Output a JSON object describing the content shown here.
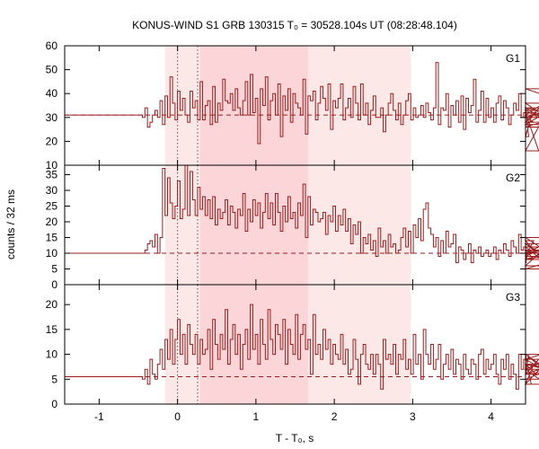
{
  "chart_data": {
    "type": "line",
    "title": "KONUS-WIND S1 GRB 130315 T₀ = 30528.104s UT (08:28:48.104)",
    "xlabel": "T - T₀, s",
    "ylabel": "counts / 32 ms",
    "xlim": [
      -1.44,
      4.44
    ],
    "xticks": [
      -1,
      0,
      1,
      2,
      3,
      4
    ],
    "bin_width": 0.032,
    "shaded_intervals": [
      {
        "range": [
          -0.16,
          2.976
        ],
        "color": "#fde8e8"
      },
      {
        "range": [
          0.288,
          1.664
        ],
        "color": "#fbd5d8"
      }
    ],
    "vertical_markers": [
      0,
      0.256
    ],
    "trace_color": "#9b1c1c",
    "panels": [
      {
        "name": "G1",
        "ylim": [
          10,
          60
        ],
        "yticks": [
          10,
          20,
          30,
          40,
          50,
          60
        ],
        "background_level": 31,
        "pre_burst_start": -0.448,
        "values": [
          30,
          34,
          26,
          28,
          31,
          33,
          30,
          37,
          27,
          39,
          30,
          47,
          36,
          29,
          41,
          33,
          38,
          31,
          28,
          41,
          34,
          37,
          29,
          45,
          29,
          35,
          37,
          27,
          43,
          28,
          36,
          33,
          46,
          37,
          36,
          40,
          33,
          42,
          34,
          31,
          37,
          45,
          31,
          48,
          32,
          38,
          19,
          42,
          35,
          47,
          29,
          37,
          40,
          31,
          44,
          22,
          39,
          33,
          42,
          28,
          40,
          36,
          34,
          31,
          46,
          23,
          39,
          37,
          41,
          29,
          36,
          43,
          38,
          33,
          44,
          25,
          37,
          34,
          38,
          44,
          29,
          34,
          38,
          30,
          43,
          36,
          29,
          44,
          31,
          36,
          27,
          33,
          39,
          30,
          30,
          34,
          24,
          31,
          36,
          40,
          33,
          29,
          36,
          27,
          31,
          37,
          40,
          29,
          34,
          30,
          31,
          35,
          30,
          36,
          32,
          29,
          34,
          53,
          27,
          34,
          33,
          40,
          26,
          35,
          31,
          37,
          28,
          39,
          25,
          38,
          32,
          35,
          46,
          28,
          33,
          41,
          28,
          38,
          30,
          34,
          28,
          36,
          39,
          29,
          37,
          34,
          27,
          31,
          36,
          33,
          40,
          30,
          32,
          34,
          22,
          30,
          28,
          32,
          16,
          28,
          36,
          30,
          33,
          27,
          34,
          26,
          30,
          34,
          31,
          42,
          36
        ]
      },
      {
        "name": "G2",
        "ylim": [
          0,
          38
        ],
        "yticks": [
          0,
          5,
          10,
          15,
          20,
          25,
          30,
          35
        ],
        "background_level": 10,
        "pre_burst_start": -0.448,
        "values": [
          10,
          11,
          13,
          14,
          12,
          16,
          10,
          15,
          37,
          22,
          34,
          26,
          21,
          25,
          33,
          21,
          24,
          38,
          22,
          36,
          27,
          22,
          31,
          24,
          28,
          22,
          27,
          21,
          28,
          19,
          24,
          21,
          23,
          27,
          19,
          25,
          23,
          18,
          24,
          22,
          29,
          17,
          24,
          20,
          27,
          22,
          26,
          18,
          23,
          29,
          21,
          26,
          19,
          29,
          23,
          17,
          25,
          20,
          28,
          21,
          23,
          18,
          26,
          22,
          32,
          15,
          28,
          19,
          24,
          23,
          20,
          21,
          23,
          16,
          22,
          20,
          25,
          17,
          22,
          19,
          24,
          17,
          21,
          13,
          19,
          16,
          20,
          10,
          15,
          13,
          16,
          11,
          14,
          9,
          18,
          12,
          14,
          10,
          16,
          12,
          13,
          10,
          11,
          15,
          18,
          12,
          17,
          10,
          19,
          15,
          21,
          14,
          24,
          26,
          18,
          16,
          12,
          15,
          9,
          14,
          10,
          17,
          12,
          13,
          16,
          7,
          12,
          11,
          8,
          10,
          13,
          7,
          11,
          10,
          12,
          9,
          10,
          11,
          9,
          10,
          12,
          8,
          11,
          10,
          13,
          11,
          9,
          14,
          12,
          10,
          16,
          11,
          12,
          7,
          11,
          9,
          14,
          10,
          12,
          8,
          10,
          11,
          9,
          13,
          6,
          15,
          8,
          10,
          13,
          5,
          9
        ]
      },
      {
        "name": "G3",
        "ylim": [
          0,
          24
        ],
        "yticks": [
          0,
          5,
          10,
          15,
          20
        ],
        "background_level": 5.5,
        "pre_burst_start": -0.448,
        "values": [
          5,
          7,
          4,
          9,
          6,
          5,
          8,
          11,
          7,
          13,
          9,
          15,
          8,
          13,
          17,
          10,
          14,
          8,
          16,
          12,
          10,
          14,
          8,
          13,
          10,
          11,
          15,
          7,
          17,
          12,
          9,
          14,
          11,
          19,
          8,
          13,
          16,
          10,
          14,
          7,
          12,
          15,
          9,
          20,
          11,
          14,
          8,
          17,
          12,
          9,
          19,
          13,
          10,
          16,
          14,
          11,
          17,
          8,
          15,
          12,
          10,
          18,
          9,
          14,
          16,
          11,
          13,
          6,
          18,
          10,
          12,
          9,
          15,
          11,
          13,
          8,
          12,
          10,
          9,
          14,
          8,
          11,
          6,
          7,
          13,
          9,
          4,
          10,
          12,
          8,
          7,
          10,
          6,
          10,
          8,
          3,
          13,
          9,
          10,
          8,
          12,
          6,
          10,
          9,
          13,
          7,
          9,
          6,
          14,
          8,
          10,
          5,
          15,
          10,
          8,
          12,
          7,
          9,
          12,
          5,
          8,
          10,
          7,
          11,
          6,
          9,
          8,
          5,
          10,
          7,
          6,
          9,
          8,
          5,
          10,
          11,
          6,
          9,
          7,
          8,
          10,
          6,
          4,
          9,
          7,
          10,
          5,
          8,
          6,
          3,
          10,
          7,
          9,
          6,
          10,
          4,
          8,
          6,
          9,
          10,
          7,
          4,
          9,
          6,
          8,
          7,
          10,
          5,
          8,
          6,
          7
        ]
      }
    ]
  }
}
